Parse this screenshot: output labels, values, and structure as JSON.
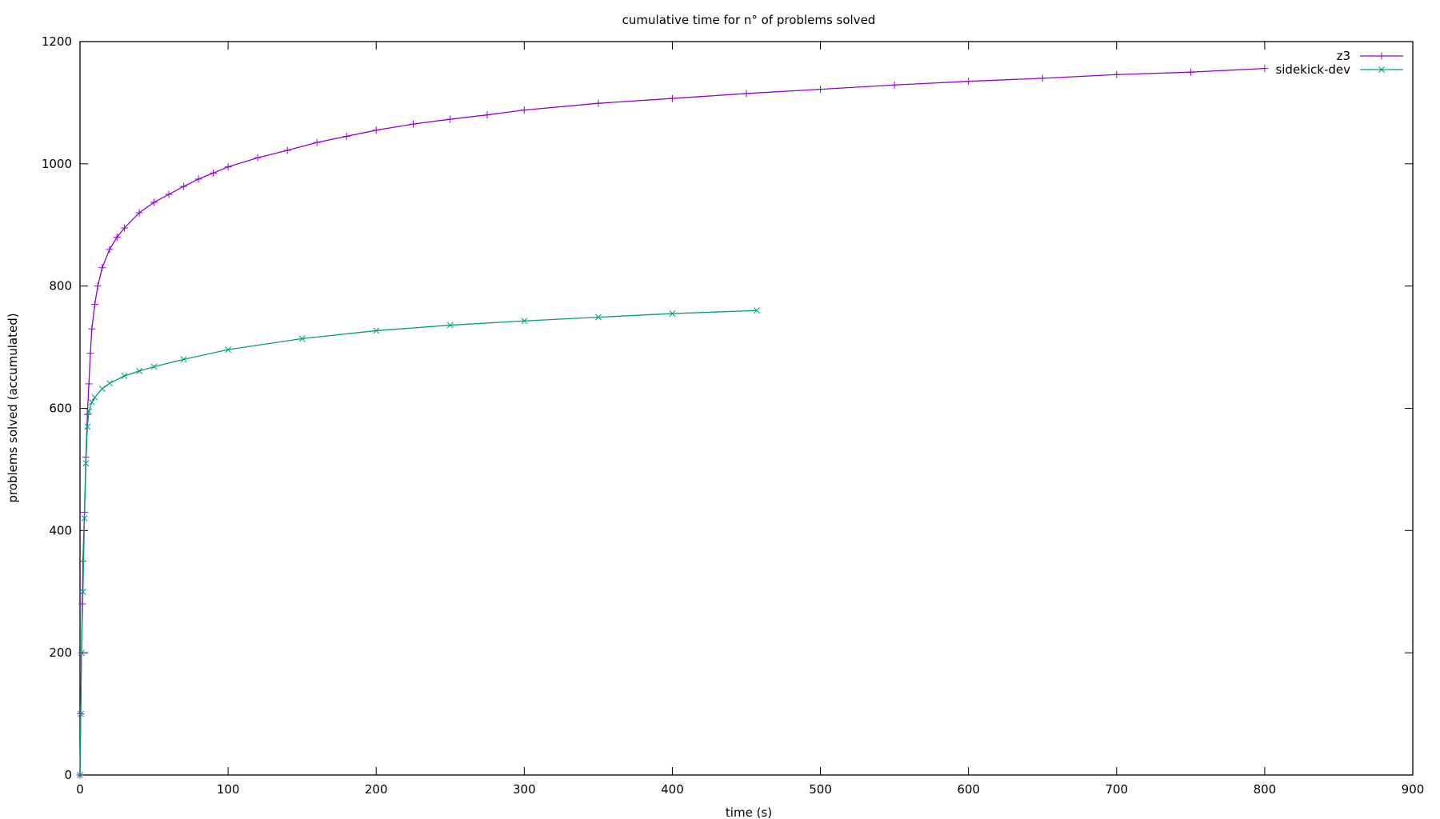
{
  "chart_data": {
    "type": "line",
    "title": "cumulative time for n° of problems solved",
    "xlabel": "time (s)",
    "ylabel": "problems solved (accumulated)",
    "xlim": [
      0,
      900
    ],
    "ylim": [
      0,
      1200
    ],
    "xticks": [
      0,
      100,
      200,
      300,
      400,
      500,
      600,
      700,
      800,
      900
    ],
    "yticks": [
      0,
      200,
      400,
      600,
      800,
      1000,
      1200
    ],
    "grid": false,
    "legend_position": "top-right",
    "series": [
      {
        "name": "z3",
        "color": "#9400d3",
        "marker": "plus",
        "points": [
          [
            0,
            0
          ],
          [
            0.5,
            100
          ],
          [
            1,
            200
          ],
          [
            1.5,
            280
          ],
          [
            2,
            350
          ],
          [
            3,
            430
          ],
          [
            4,
            520
          ],
          [
            5,
            590
          ],
          [
            6,
            640
          ],
          [
            7,
            690
          ],
          [
            8,
            730
          ],
          [
            10,
            770
          ],
          [
            12,
            800
          ],
          [
            15,
            830
          ],
          [
            20,
            860
          ],
          [
            25,
            880
          ],
          [
            30,
            895
          ],
          [
            40,
            920
          ],
          [
            50,
            937
          ],
          [
            60,
            950
          ],
          [
            70,
            963
          ],
          [
            80,
            975
          ],
          [
            90,
            985
          ],
          [
            100,
            995
          ],
          [
            120,
            1010
          ],
          [
            140,
            1022
          ],
          [
            160,
            1035
          ],
          [
            180,
            1045
          ],
          [
            200,
            1055
          ],
          [
            225,
            1065
          ],
          [
            250,
            1073
          ],
          [
            275,
            1080
          ],
          [
            300,
            1088
          ],
          [
            350,
            1099
          ],
          [
            400,
            1107
          ],
          [
            450,
            1115
          ],
          [
            500,
            1122
          ],
          [
            550,
            1129
          ],
          [
            600,
            1135
          ],
          [
            650,
            1140
          ],
          [
            700,
            1146
          ],
          [
            750,
            1150
          ],
          [
            800,
            1156
          ]
        ]
      },
      {
        "name": "sidekick-dev",
        "color": "#009e73",
        "marker": "cross",
        "points": [
          [
            0,
            0
          ],
          [
            0.5,
            100
          ],
          [
            1,
            200
          ],
          [
            2,
            300
          ],
          [
            3,
            420
          ],
          [
            4,
            510
          ],
          [
            5,
            570
          ],
          [
            6,
            595
          ],
          [
            8,
            610
          ],
          [
            10,
            618
          ],
          [
            15,
            632
          ],
          [
            20,
            641
          ],
          [
            30,
            653
          ],
          [
            40,
            661
          ],
          [
            50,
            668
          ],
          [
            70,
            680
          ],
          [
            100,
            696
          ],
          [
            150,
            714
          ],
          [
            200,
            727
          ],
          [
            250,
            736
          ],
          [
            300,
            743
          ],
          [
            350,
            749
          ],
          [
            400,
            755
          ],
          [
            457,
            760
          ]
        ]
      }
    ]
  }
}
